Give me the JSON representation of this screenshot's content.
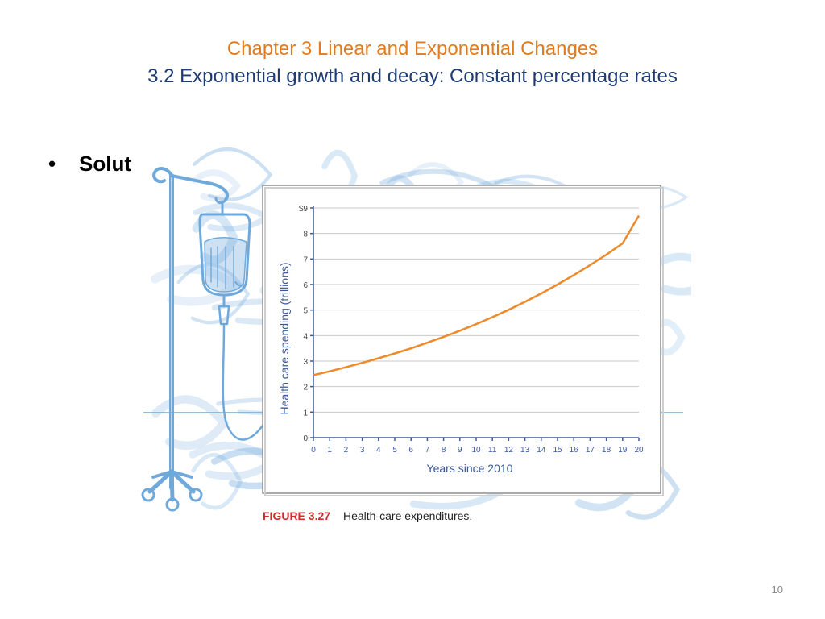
{
  "colors": {
    "title_line1": "#E07C1F",
    "title_line2": "#1F3B73",
    "curve": "#EE8A2A",
    "axis": "#3B5A9A",
    "figure_label": "#D22B2B",
    "sketch_blue": "#6FA9DC"
  },
  "slide": {
    "title_line1": "Chapter 3 Linear and Exponential Changes",
    "title_line2": "3.2 Exponential growth and decay: Constant percentage rates",
    "bullet": "Solut",
    "page_number": "10"
  },
  "figure": {
    "label": "FIGURE 3.27",
    "caption": "Health-care expenditures.",
    "illustration_icon": "iv-drip-stand-icon"
  },
  "chart_data": {
    "type": "line",
    "title": "",
    "xlabel": "Years since 2010",
    "ylabel": "Health care spending (trillions)",
    "xlim": [
      0,
      20
    ],
    "ylim": [
      0,
      9
    ],
    "x_ticks": [
      "0",
      "1",
      "2",
      "3",
      "4",
      "5",
      "6",
      "7",
      "8",
      "9",
      "10",
      "11",
      "12",
      "13",
      "14",
      "15",
      "16",
      "17",
      "18",
      "19",
      "20"
    ],
    "y_ticks": [
      "0",
      "1",
      "2",
      "3",
      "4",
      "5",
      "6",
      "7",
      "8",
      "$9"
    ],
    "grid": "horizontal",
    "series": [
      {
        "x": [
          0,
          1,
          2,
          3,
          4,
          5,
          6,
          7,
          8,
          9,
          10,
          11,
          12,
          13,
          14,
          15,
          16,
          17,
          18,
          19,
          20
        ],
        "values": [
          2.45,
          2.6,
          2.76,
          2.93,
          3.11,
          3.3,
          3.5,
          3.72,
          3.95,
          4.19,
          4.45,
          4.72,
          5.01,
          5.32,
          5.65,
          6.0,
          6.37,
          6.76,
          7.17,
          7.61,
          8.7
        ]
      }
    ]
  }
}
